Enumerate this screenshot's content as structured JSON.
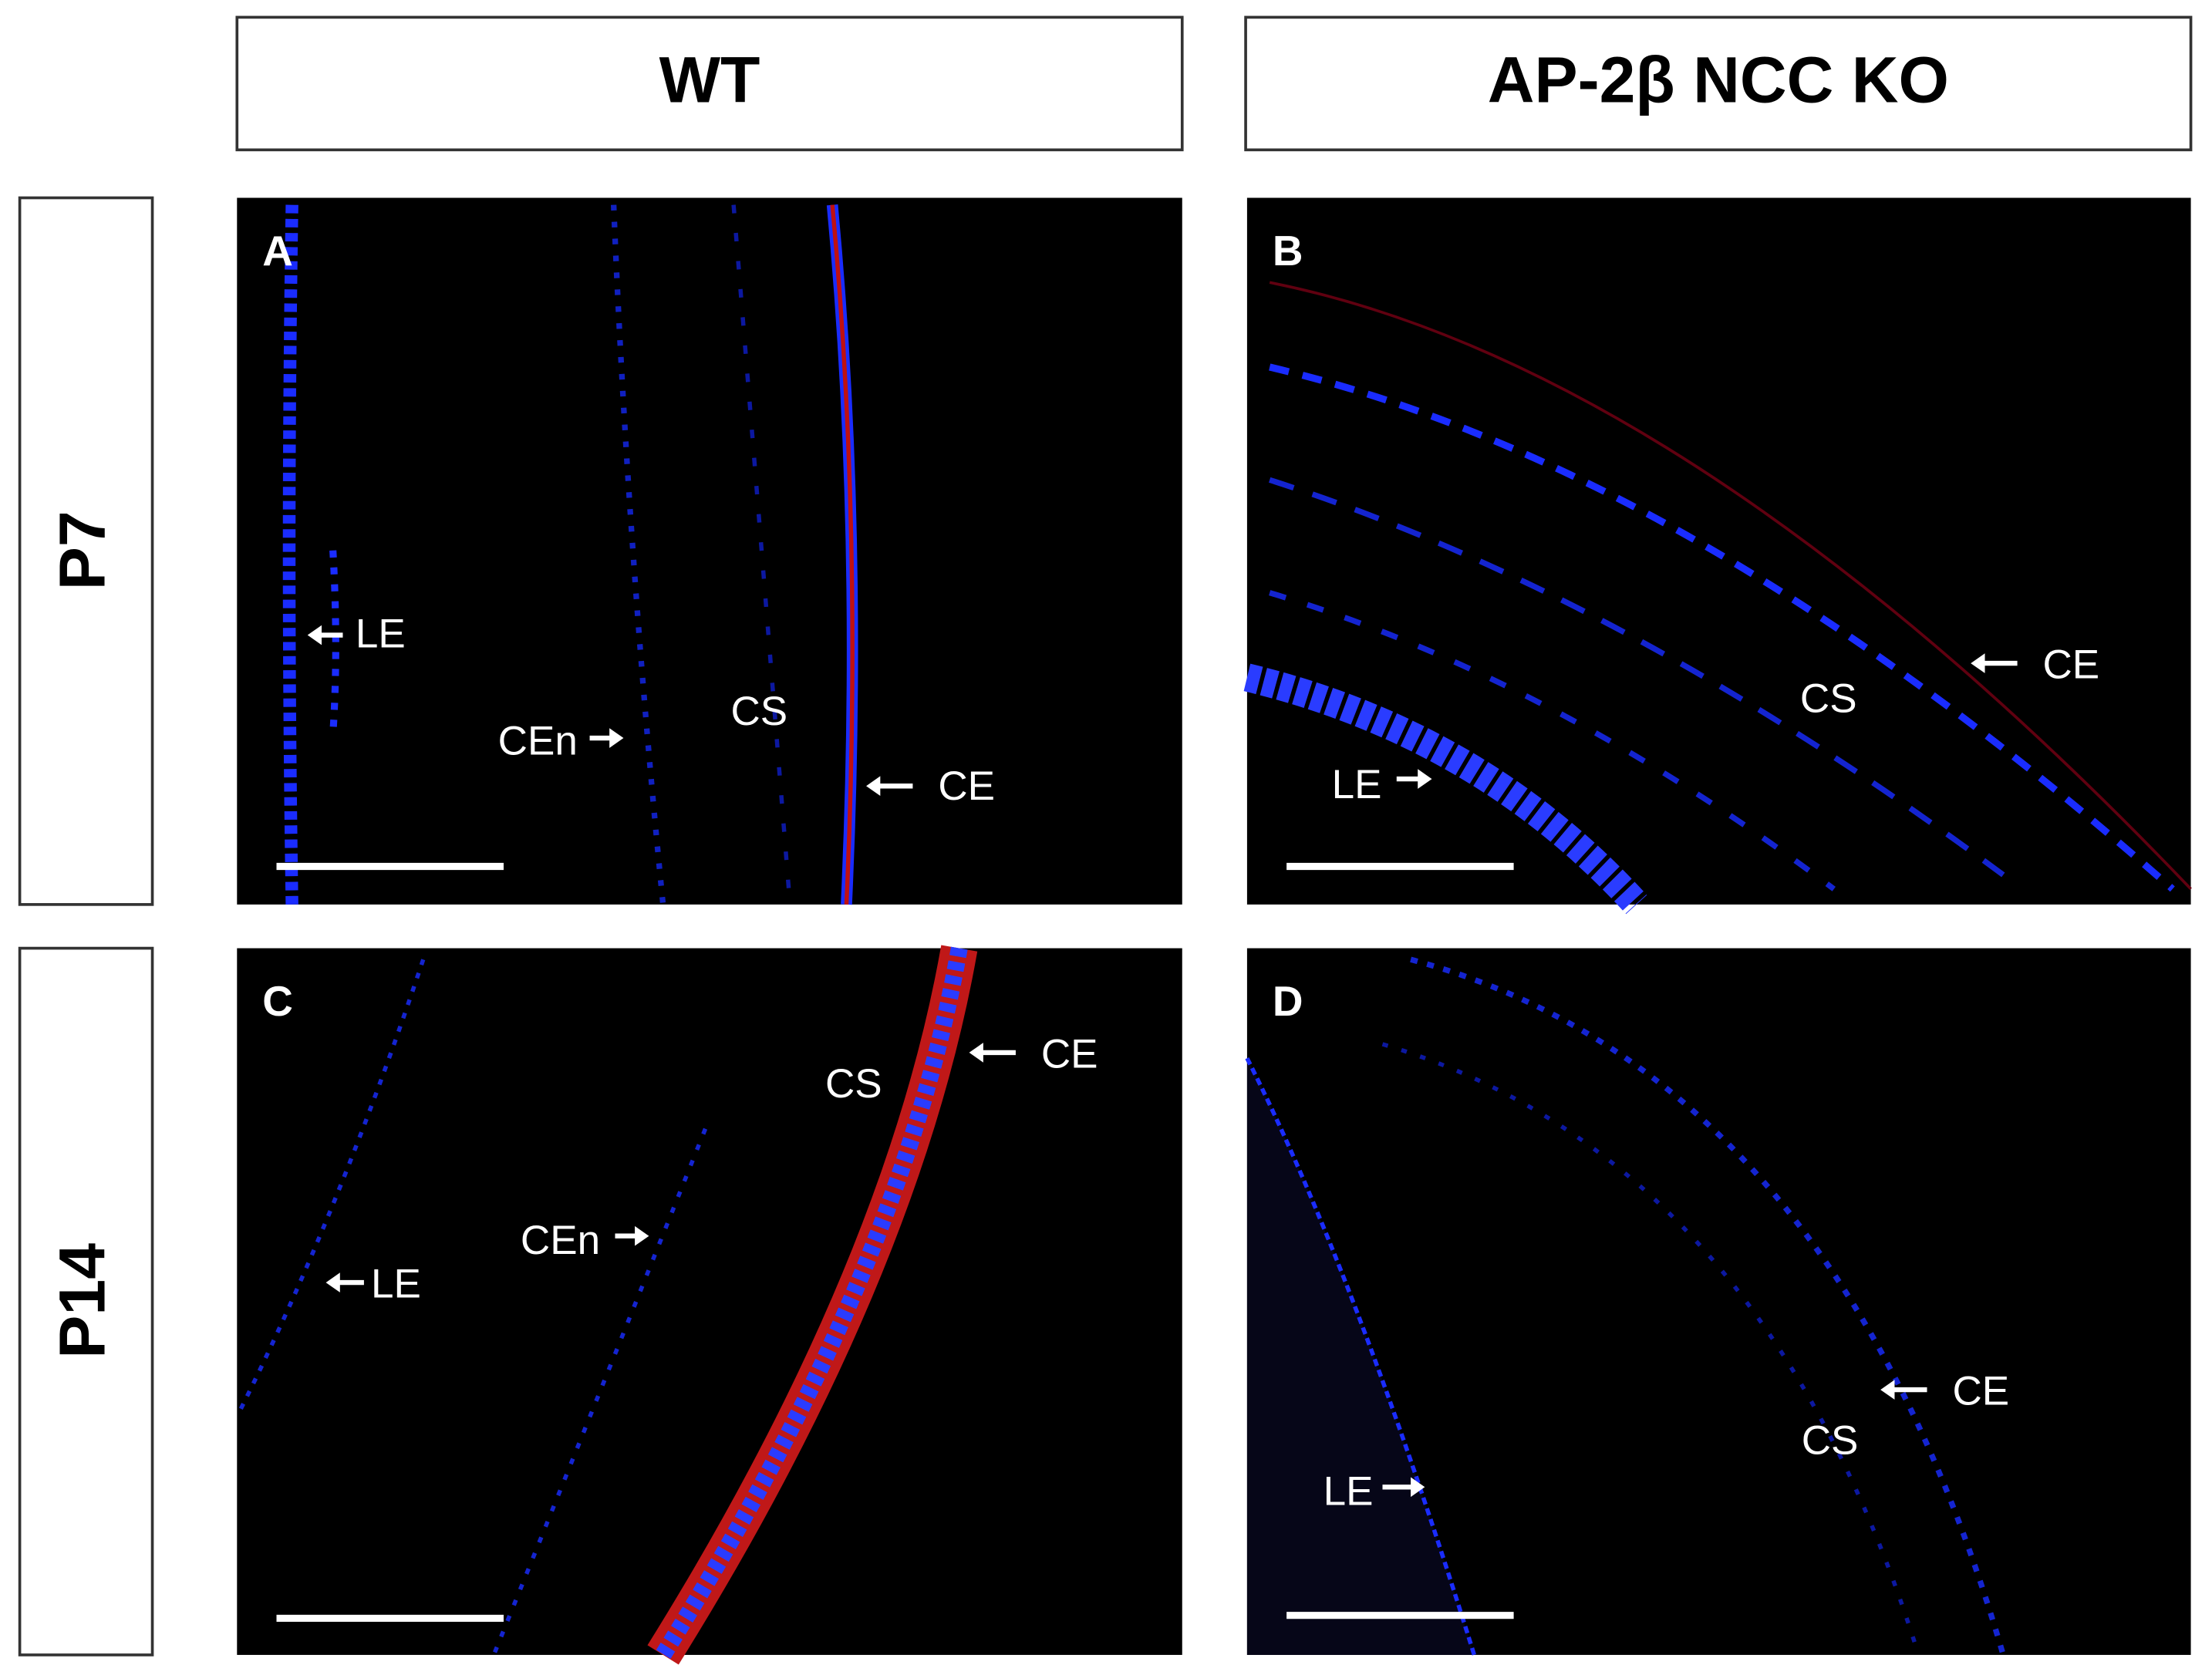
{
  "header": {
    "columns": [
      "WT",
      "AP-2β NCC KO"
    ]
  },
  "rows": [
    "P7",
    "P14"
  ],
  "panels": [
    {
      "letter": "A",
      "labels": [
        "LE",
        "CEn",
        "CS",
        "CE"
      ]
    },
    {
      "letter": "B",
      "labels": [
        "CE",
        "CS",
        "LE"
      ]
    },
    {
      "letter": "C",
      "labels": [
        "CE",
        "CS",
        "CEn",
        "LE"
      ]
    },
    {
      "letter": "D",
      "labels": [
        "CE",
        "CS",
        "LE"
      ]
    }
  ]
}
